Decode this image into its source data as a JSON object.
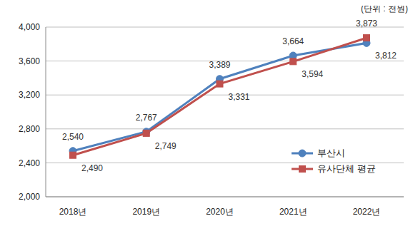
{
  "chart_data": {
    "type": "line",
    "annotations": [
      "(단위 : 천원)"
    ],
    "categories": [
      "2018년",
      "2019년",
      "2020년",
      "2021년",
      "2022년"
    ],
    "series": [
      {
        "name": "부산시",
        "color": "#4f81bd",
        "marker": "circle",
        "values": [
          2540,
          2767,
          3389,
          3664,
          3812
        ],
        "value_labels": [
          "2,540",
          "2,767",
          "3,389",
          "3,664",
          "3,812"
        ]
      },
      {
        "name": "유사단체 평균",
        "color": "#c0504d",
        "marker": "square",
        "values": [
          2490,
          2749,
          3331,
          3594,
          3873
        ],
        "value_labels": [
          "2,490",
          "2,749",
          "3,331",
          "3,594",
          "3,873"
        ]
      }
    ],
    "ylim": [
      2000,
      4000
    ],
    "yticks": [
      {
        "value": 2000,
        "label": "2,000"
      },
      {
        "value": 2400,
        "label": "2,400"
      },
      {
        "value": 2800,
        "label": "2,800"
      },
      {
        "value": 3200,
        "label": "3,200"
      },
      {
        "value": 3600,
        "label": "3,600"
      },
      {
        "value": 4000,
        "label": "4,000"
      }
    ],
    "grid": true,
    "legend": "lower right",
    "data_labels": true
  }
}
